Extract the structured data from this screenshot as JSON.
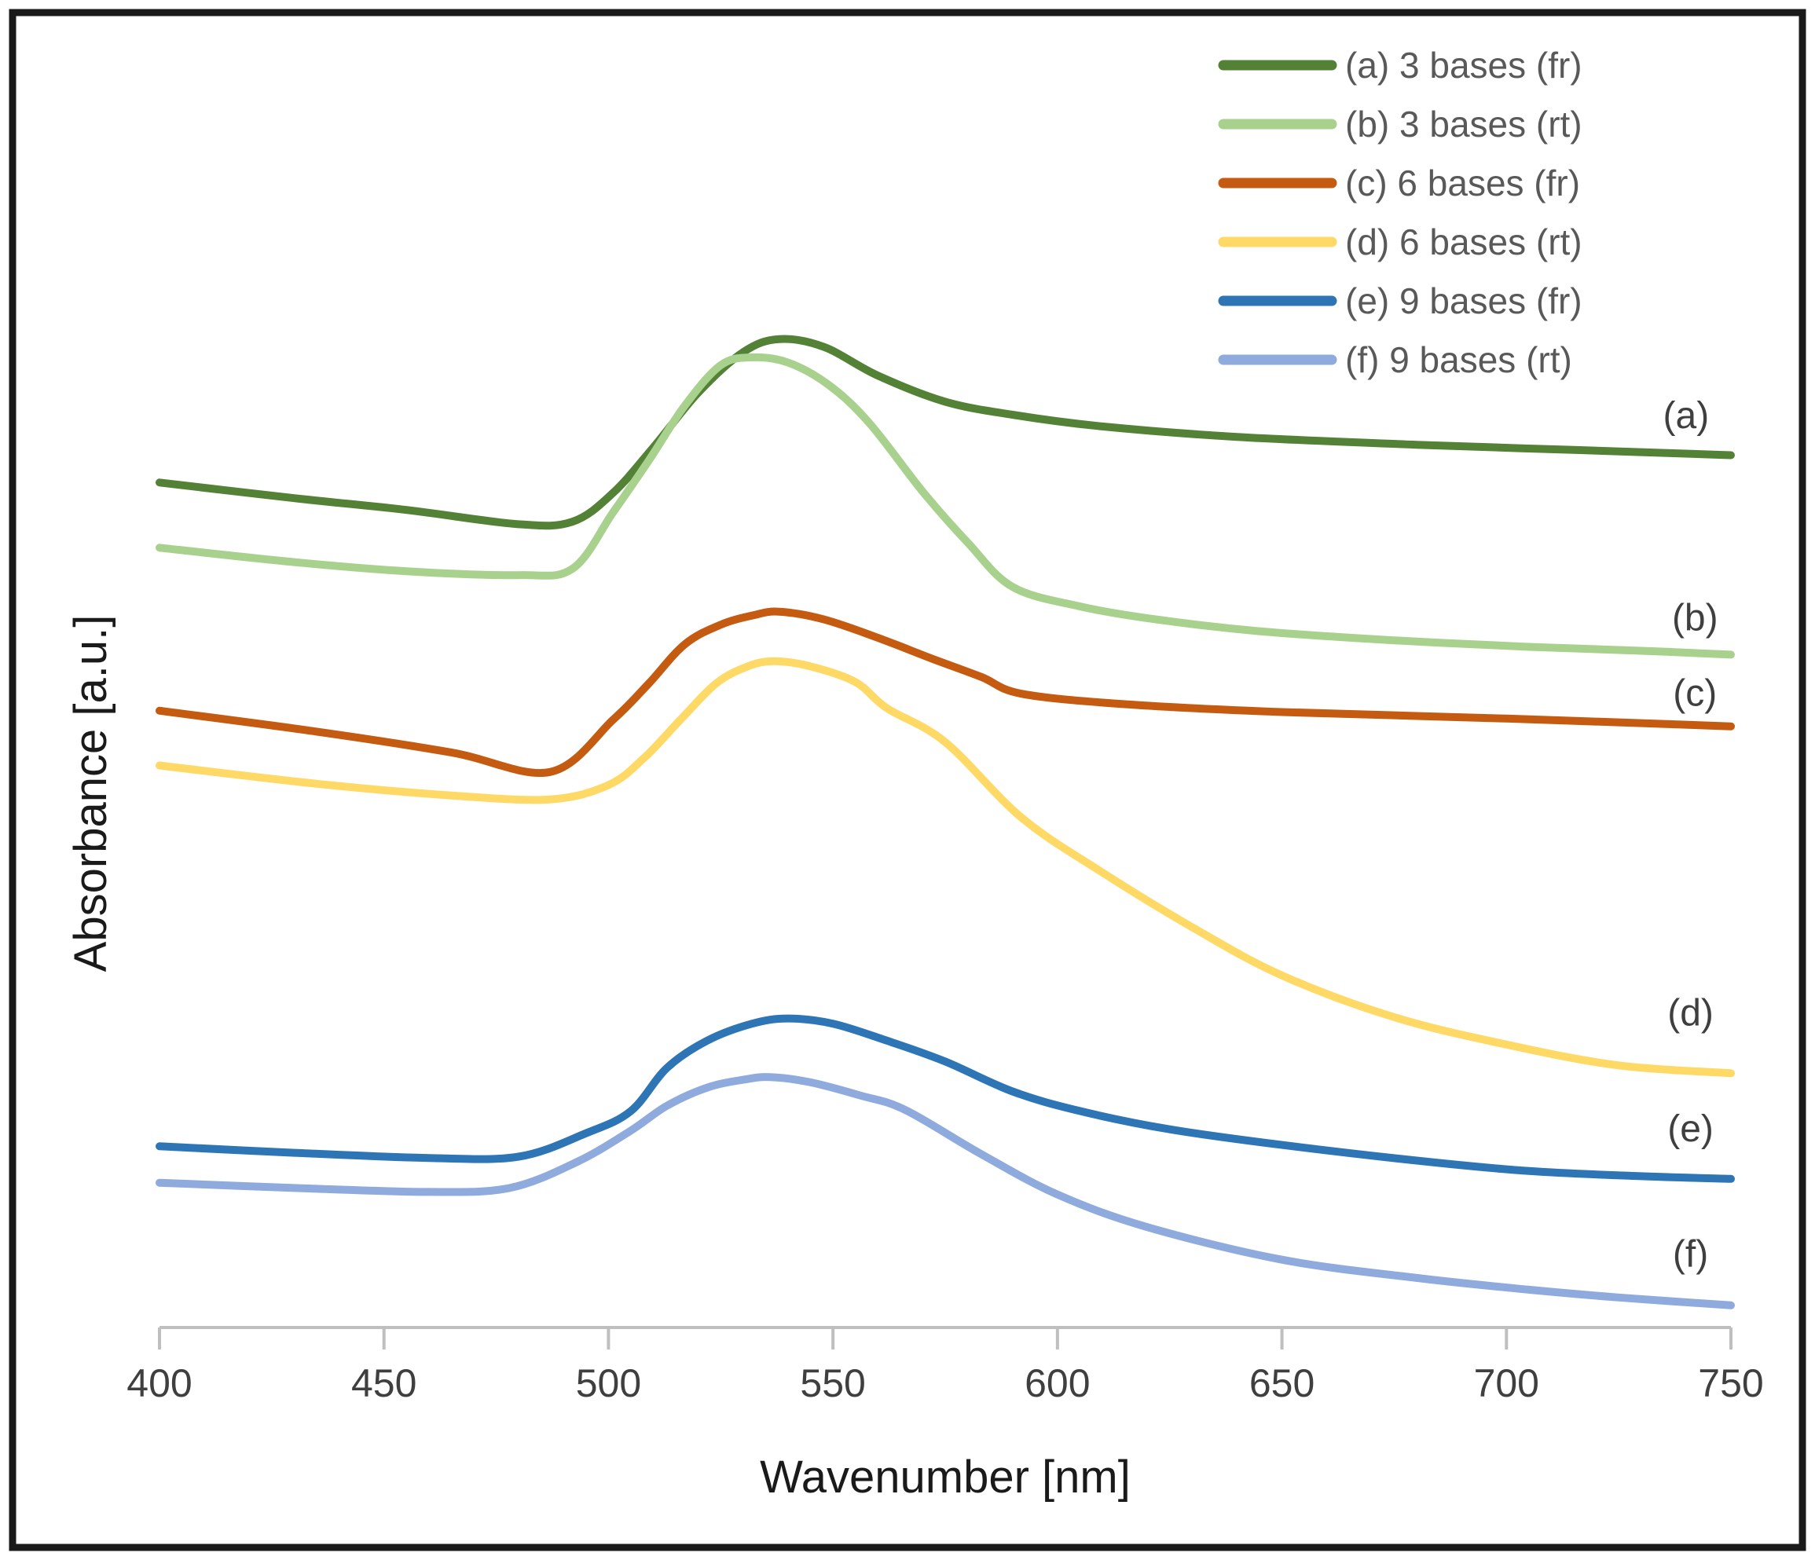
{
  "figure": {
    "background": "#ffffff",
    "frame_color": "#1a1a1a",
    "frame_stroke_width": 9
  },
  "chart_data": {
    "type": "line",
    "title": "",
    "xlabel": "Wavenumber [nm]",
    "ylabel": "Absorbance [a.u.]",
    "x_range": [
      400,
      750
    ],
    "x_ticks": [
      400,
      450,
      500,
      550,
      600,
      650,
      700,
      750
    ],
    "y_unit": "arbitrary units; au = fraction of plot height above x-axis (no y ticks shown)",
    "ylim": [
      0,
      1
    ],
    "grid": false,
    "legend_position": "top-right",
    "axis_color": "#bfbfbf",
    "tick_label_color": "#3f3f3f",
    "legend_text_color": "#595959",
    "annotation_color": "#3f3f3f",
    "title_color": "#1a1a1a",
    "line_width": 10,
    "series": [
      {
        "key": "a",
        "legend": "(a) 3 bases (fr)",
        "color": "#538135",
        "peak_nm": 538,
        "annotation": {
          "text": "(a)",
          "nm": 740,
          "au": 0.7
        },
        "points": [
          [
            400,
            0.648
          ],
          [
            430,
            0.636
          ],
          [
            455,
            0.627
          ],
          [
            480,
            0.616
          ],
          [
            492,
            0.618
          ],
          [
            501,
            0.64
          ],
          [
            510,
            0.675
          ],
          [
            520,
            0.717
          ],
          [
            530,
            0.748
          ],
          [
            538,
            0.758
          ],
          [
            548,
            0.752
          ],
          [
            560,
            0.73
          ],
          [
            575,
            0.71
          ],
          [
            590,
            0.7
          ],
          [
            610,
            0.691
          ],
          [
            640,
            0.683
          ],
          [
            680,
            0.677
          ],
          [
            715,
            0.673
          ],
          [
            750,
            0.669
          ]
        ]
      },
      {
        "key": "b",
        "legend": "(b) 3 bases (rt)",
        "color": "#a9d18e",
        "peak_nm": 532,
        "annotation": {
          "text": "(b)",
          "nm": 742,
          "au": 0.545
        },
        "points": [
          [
            400,
            0.598
          ],
          [
            430,
            0.587
          ],
          [
            455,
            0.58
          ],
          [
            480,
            0.577
          ],
          [
            492,
            0.582
          ],
          [
            501,
            0.625
          ],
          [
            509,
            0.665
          ],
          [
            517,
            0.707
          ],
          [
            525,
            0.738
          ],
          [
            532,
            0.744
          ],
          [
            540,
            0.74
          ],
          [
            549,
            0.723
          ],
          [
            558,
            0.694
          ],
          [
            570,
            0.641
          ],
          [
            580,
            0.602
          ],
          [
            590,
            0.568
          ],
          [
            605,
            0.553
          ],
          [
            622,
            0.543
          ],
          [
            645,
            0.534
          ],
          [
            675,
            0.527
          ],
          [
            705,
            0.522
          ],
          [
            730,
            0.519
          ],
          [
            750,
            0.516
          ]
        ]
      },
      {
        "key": "c",
        "legend": "(c) 6 bases (fr)",
        "color": "#c55a11",
        "peak_nm": 538,
        "annotation": {
          "text": "(c)",
          "nm": 742,
          "au": 0.487
        },
        "points": [
          [
            400,
            0.473
          ],
          [
            435,
            0.457
          ],
          [
            465,
            0.441
          ],
          [
            487,
            0.426
          ],
          [
            501,
            0.466
          ],
          [
            509,
            0.494
          ],
          [
            517,
            0.524
          ],
          [
            525,
            0.539
          ],
          [
            532,
            0.546
          ],
          [
            538,
            0.549
          ],
          [
            548,
            0.543
          ],
          [
            560,
            0.529
          ],
          [
            572,
            0.513
          ],
          [
            583,
            0.499
          ],
          [
            592,
            0.486
          ],
          [
            615,
            0.478
          ],
          [
            650,
            0.472
          ],
          [
            700,
            0.467
          ],
          [
            750,
            0.461
          ]
        ]
      },
      {
        "key": "d",
        "legend": "(d) 6 bases (rt)",
        "color": "#ffd966",
        "peak_nm": 535,
        "annotation": {
          "text": "(d)",
          "nm": 741,
          "au": 0.242
        },
        "points": [
          [
            400,
            0.431
          ],
          [
            435,
            0.417
          ],
          [
            465,
            0.408
          ],
          [
            487,
            0.405
          ],
          [
            500,
            0.416
          ],
          [
            508,
            0.437
          ],
          [
            516,
            0.466
          ],
          [
            524,
            0.494
          ],
          [
            531,
            0.507
          ],
          [
            537,
            0.511
          ],
          [
            545,
            0.507
          ],
          [
            555,
            0.495
          ],
          [
            562,
            0.475
          ],
          [
            575,
            0.449
          ],
          [
            592,
            0.391
          ],
          [
            610,
            0.349
          ],
          [
            630,
            0.307
          ],
          [
            650,
            0.27
          ],
          [
            675,
            0.238
          ],
          [
            700,
            0.217
          ],
          [
            725,
            0.201
          ],
          [
            750,
            0.195
          ]
        ]
      },
      {
        "key": "e",
        "legend": "(e) 9 bases (fr)",
        "color": "#2e75b6",
        "peak_nm": 540,
        "annotation": {
          "text": "(e)",
          "nm": 741,
          "au": 0.153
        },
        "points": [
          [
            400,
            0.139
          ],
          [
            430,
            0.134
          ],
          [
            460,
            0.13
          ],
          [
            480,
            0.131
          ],
          [
            495,
            0.149
          ],
          [
            505,
            0.166
          ],
          [
            513,
            0.199
          ],
          [
            522,
            0.22
          ],
          [
            532,
            0.233
          ],
          [
            540,
            0.237
          ],
          [
            550,
            0.233
          ],
          [
            562,
            0.22
          ],
          [
            575,
            0.204
          ],
          [
            590,
            0.181
          ],
          [
            605,
            0.166
          ],
          [
            625,
            0.152
          ],
          [
            650,
            0.14
          ],
          [
            680,
            0.128
          ],
          [
            705,
            0.12
          ],
          [
            730,
            0.116
          ],
          [
            750,
            0.114
          ]
        ]
      },
      {
        "key": "f",
        "legend": "(f) 9 bases (rt)",
        "color": "#8faadc",
        "peak_nm": 536,
        "annotation": {
          "text": "(f)",
          "nm": 741,
          "au": 0.057
        },
        "points": [
          [
            400,
            0.111
          ],
          [
            430,
            0.107
          ],
          [
            460,
            0.104
          ],
          [
            478,
            0.107
          ],
          [
            493,
            0.127
          ],
          [
            505,
            0.151
          ],
          [
            513,
            0.17
          ],
          [
            522,
            0.184
          ],
          [
            530,
            0.19
          ],
          [
            536,
            0.192
          ],
          [
            545,
            0.188
          ],
          [
            556,
            0.178
          ],
          [
            566,
            0.167
          ],
          [
            583,
            0.133
          ],
          [
            600,
            0.102
          ],
          [
            620,
            0.077
          ],
          [
            650,
            0.052
          ],
          [
            680,
            0.038
          ],
          [
            705,
            0.029
          ],
          [
            725,
            0.023
          ],
          [
            750,
            0.017
          ]
        ]
      }
    ]
  }
}
